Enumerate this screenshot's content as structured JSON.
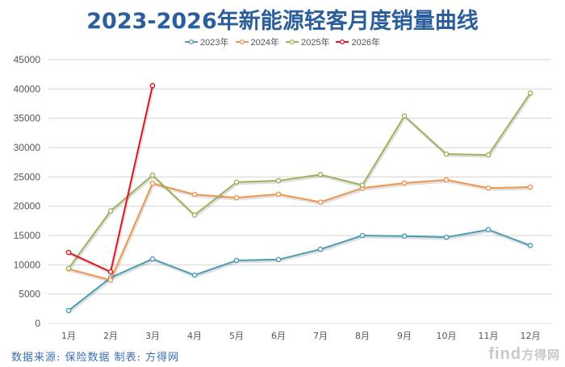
{
  "title": "2023-2026年新能源轻客月度销量曲线",
  "source_note": "数据来源: 保险数据 制表: 方得网",
  "watermark": {
    "latin": "find",
    "cn": "方得网"
  },
  "chart_data": {
    "type": "line",
    "title": "2023-2026年新能源轻客月度销量曲线",
    "xlabel": "",
    "ylabel": "",
    "categories": [
      "1月",
      "2月",
      "3月",
      "4月",
      "5月",
      "6月",
      "7月",
      "8月",
      "9月",
      "10月",
      "11月",
      "12月"
    ],
    "yticks": [
      0,
      5000,
      10000,
      15000,
      20000,
      25000,
      30000,
      35000,
      40000,
      45000
    ],
    "ylim": [
      0,
      45000
    ],
    "grid": true,
    "legend_position": "top",
    "series": [
      {
        "name": "2023年",
        "color": "#4a9db3",
        "values": [
          2200,
          7800,
          11000,
          8250,
          10750,
          10900,
          12650,
          15000,
          14900,
          14700,
          16000,
          13300
        ]
      },
      {
        "name": "2024年",
        "color": "#ee9550",
        "values": [
          9300,
          7400,
          23900,
          22000,
          21450,
          22050,
          20700,
          23100,
          23950,
          24500,
          23100,
          23250
        ]
      },
      {
        "name": "2025年",
        "color": "#9db25a",
        "values": [
          9400,
          19200,
          25300,
          18500,
          24100,
          24350,
          25400,
          23600,
          35400,
          28900,
          28750,
          39300
        ]
      },
      {
        "name": "2026年",
        "color": "#e0141e",
        "values": [
          12100,
          8800,
          40580
        ]
      }
    ]
  }
}
